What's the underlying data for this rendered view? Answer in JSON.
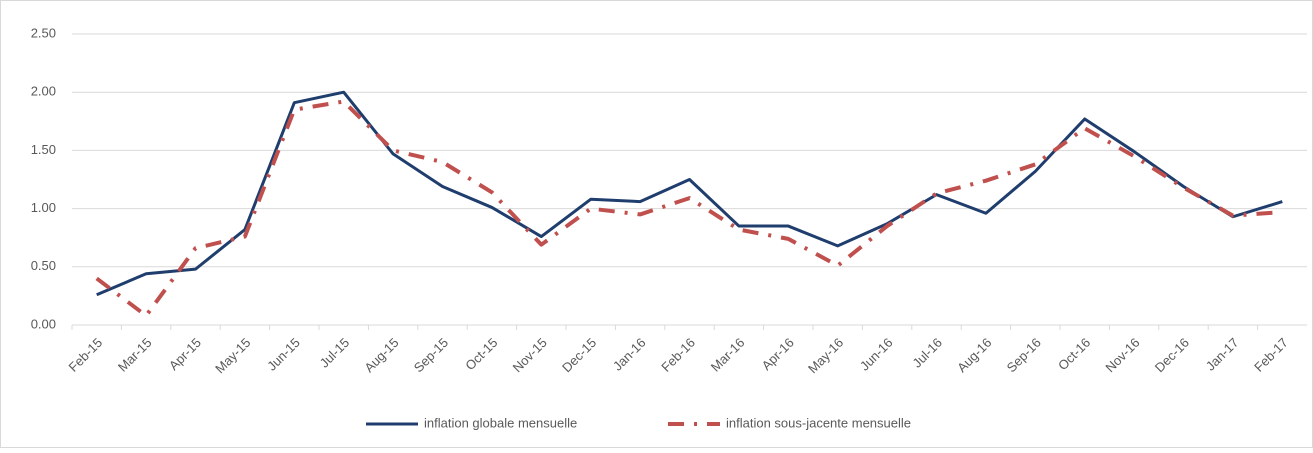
{
  "chart_data": {
    "type": "line",
    "categories": [
      "Feb-15",
      "Mar-15",
      "Apr-15",
      "May-15",
      "Jun-15",
      "Jul-15",
      "Aug-15",
      "Sep-15",
      "Oct-15",
      "Nov-15",
      "Dec-15",
      "Jan-16",
      "Feb-16",
      "Mar-16",
      "Apr-16",
      "May-16",
      "Jun-16",
      "Jul-16",
      "Aug-16",
      "Sep-16",
      "Oct-16",
      "Nov-16",
      "Dec-16",
      "Jan-17",
      "Feb-17"
    ],
    "series": [
      {
        "name": "inflation globale mensuelle",
        "color": "#1f3e6e",
        "dash": "solid",
        "values": [
          0.26,
          0.44,
          0.48,
          0.82,
          1.91,
          2.0,
          1.47,
          1.19,
          1.01,
          0.76,
          1.08,
          1.06,
          1.25,
          0.85,
          0.85,
          0.68,
          0.87,
          1.12,
          0.96,
          1.32,
          1.77,
          1.49,
          1.19,
          0.93,
          1.06
        ]
      },
      {
        "name": "inflation sous-jacente mensuelle",
        "color": "#c0504d",
        "dash": "dashdot",
        "values": [
          0.4,
          0.08,
          0.66,
          0.76,
          1.85,
          1.92,
          1.5,
          1.4,
          1.14,
          0.69,
          1.0,
          0.95,
          1.09,
          0.82,
          0.74,
          0.51,
          0.85,
          1.13,
          1.24,
          1.38,
          1.69,
          1.45,
          1.18,
          0.94,
          0.97
        ]
      }
    ],
    "ylim": [
      0,
      2.5
    ],
    "yticks": [
      {
        "value": 0,
        "label": "0.00"
      },
      {
        "value": 0.5,
        "label": "0.50"
      },
      {
        "value": 1,
        "label": "1.00"
      },
      {
        "value": 1.5,
        "label": "1.50"
      },
      {
        "value": 2,
        "label": "2.00"
      },
      {
        "value": 2.5,
        "label": "2.50"
      }
    ],
    "grid": true,
    "legend": "bottom"
  }
}
